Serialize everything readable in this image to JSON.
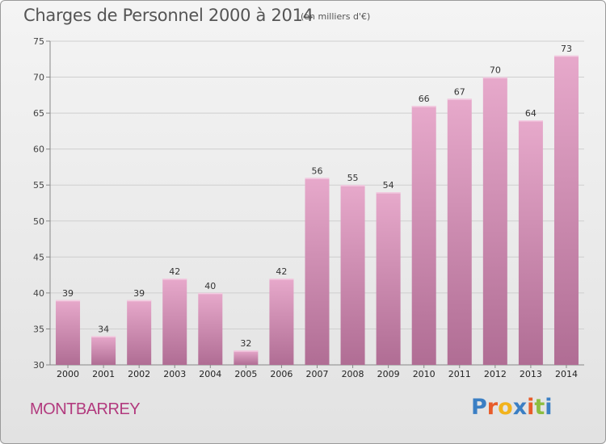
{
  "chart_data": {
    "type": "bar",
    "title": "Charges de Personnel 2000 à 2014",
    "subtitle": "(en milliers d'€)",
    "categories": [
      "2000",
      "2001",
      "2002",
      "2003",
      "2004",
      "2005",
      "2006",
      "2007",
      "2008",
      "2009",
      "2010",
      "2011",
      "2012",
      "2013",
      "2014"
    ],
    "values": [
      39,
      34,
      39,
      42,
      40,
      32,
      42,
      56,
      55,
      54,
      66,
      67,
      70,
      64,
      73
    ],
    "ylim": [
      30,
      75
    ],
    "yticks": [
      30,
      35,
      40,
      45,
      50,
      55,
      60,
      65,
      70,
      75
    ],
    "grid": true,
    "bar_color_top": "#e7a9cb",
    "bar_color_bottom": "#b06d94"
  },
  "footer": {
    "town": "MONTBARREY",
    "logo": [
      "P",
      "r",
      "o",
      "x",
      "i",
      "t",
      "i"
    ],
    "logo_colors": [
      "#3b7fc4",
      "#e85c2a",
      "#f2b31c",
      "#3b7fc4",
      "#e85c2a",
      "#8cbd3f",
      "#3b7fc4"
    ]
  }
}
